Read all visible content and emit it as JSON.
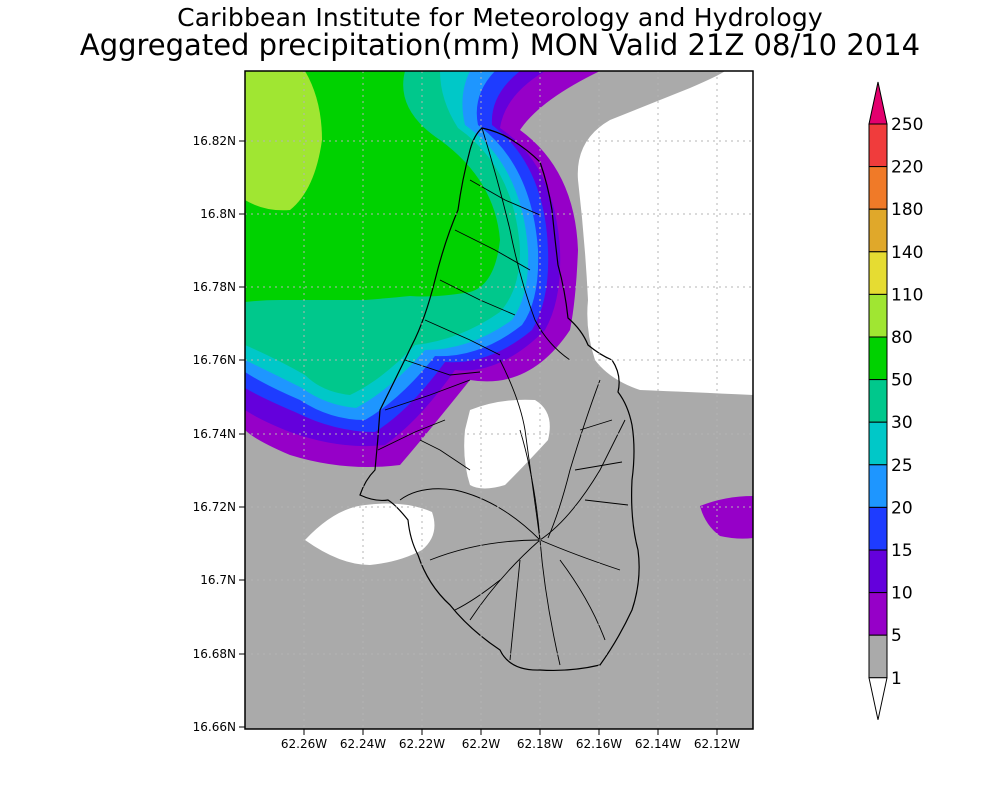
{
  "title": "Caribbean Institute for Meteorology and Hydrology",
  "subtitle": "Aggregated precipitation(mm) MON Valid 21Z 08/10 2014",
  "lat_ticks": [
    "16.82N",
    "16.8N",
    "16.78N",
    "16.76N",
    "16.74N",
    "16.72N",
    "16.7N",
    "16.68N",
    "16.66N"
  ],
  "lon_ticks": [
    "62.26W",
    "62.24W",
    "62.22W",
    "62.2W",
    "62.18W",
    "62.16W",
    "62.14W",
    "62.12W"
  ],
  "colorbar": {
    "labels": [
      "250",
      "220",
      "180",
      "140",
      "110",
      "80",
      "50",
      "30",
      "25",
      "20",
      "15",
      "10",
      "5",
      "1"
    ],
    "colors": [
      "#e3006e",
      "#f03c3c",
      "#f07a28",
      "#e0a82a",
      "#e6dc32",
      "#a0e632",
      "#00d200",
      "#00c88c",
      "#00c8c8",
      "#1e96ff",
      "#1e3cff",
      "#6400dc",
      "#9600c8",
      "#aaaaaa",
      "#ffffff"
    ]
  },
  "chart_data": {
    "type": "heatmap",
    "title": "Caribbean Institute for Meteorology and Hydrology",
    "subtitle": "Aggregated precipitation(mm) MON Valid 21Z 08/10 2014",
    "xlim": [
      "62.28W",
      "62.11W"
    ],
    "ylim": [
      "16.66N",
      "16.86N"
    ],
    "units": "mm",
    "levels": [
      1,
      5,
      10,
      15,
      20,
      25,
      30,
      50,
      80,
      110,
      140,
      180,
      220,
      250
    ],
    "grid": true
  }
}
